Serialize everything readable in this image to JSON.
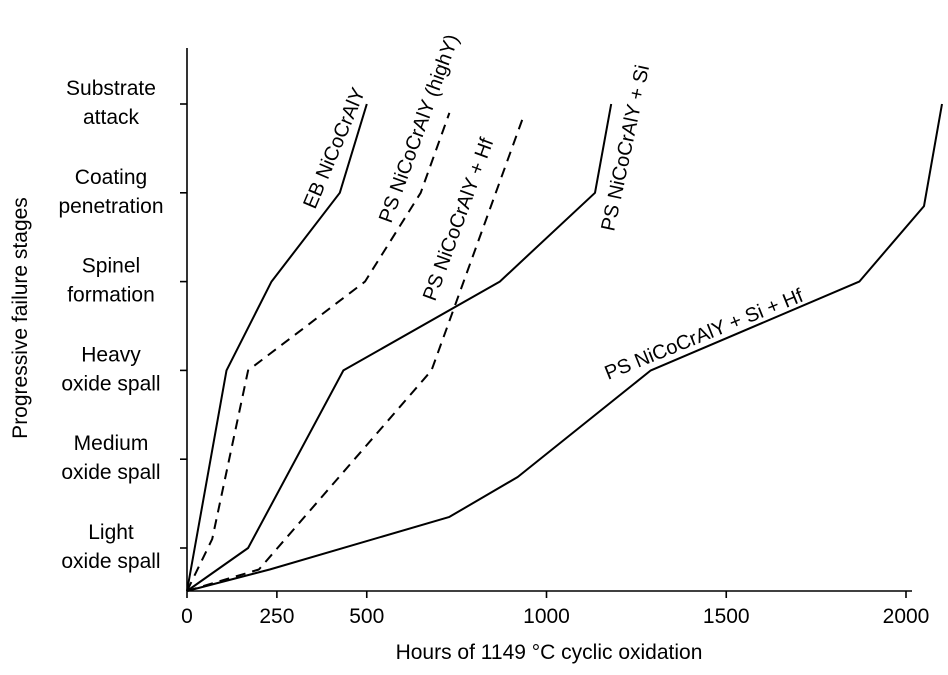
{
  "chart_data": {
    "type": "line",
    "xlabel": "Hours of 1149 °C cyclic oxidation",
    "ylabel": "Progressive failure stages",
    "xlim": [
      0,
      2100
    ],
    "x_ticks": [
      0,
      250,
      500,
      1000,
      1500,
      2000
    ],
    "y_categories": [
      {
        "line1": "Light",
        "line2": "oxide spall"
      },
      {
        "line1": "Medium",
        "line2": "oxide spall"
      },
      {
        "line1": "Heavy",
        "line2": "oxide spall"
      },
      {
        "line1": "Spinel",
        "line2": "formation"
      },
      {
        "line1": "Coating",
        "line2": "penetration"
      },
      {
        "line1": "Substrate",
        "line2": "attack"
      }
    ],
    "ylim": [
      0.5,
      6.5
    ],
    "grid": false,
    "series": [
      {
        "name": "EB NiCoCrAlY",
        "dash": "solid",
        "points": [
          [
            0,
            0
          ],
          [
            110,
            3
          ],
          [
            235,
            4
          ],
          [
            425,
            5
          ],
          [
            500,
            6
          ]
        ]
      },
      {
        "name": "PS NiCoCrAlY (highY)",
        "dash": "dashed",
        "points": [
          [
            0,
            0
          ],
          [
            70,
            1.1
          ],
          [
            170,
            3
          ],
          [
            495,
            4
          ],
          [
            650,
            5
          ],
          [
            730,
            5.9
          ]
        ]
      },
      {
        "name": "PS NiCoCrAlY + Hf",
        "dash": "dashed",
        "points": [
          [
            0,
            0
          ],
          [
            200,
            0.5
          ],
          [
            680,
            3
          ],
          [
            935,
            5.85
          ]
        ]
      },
      {
        "name": "PS NiCoCrAlY + Si",
        "dash": "solid",
        "points": [
          [
            0,
            0
          ],
          [
            170,
            1
          ],
          [
            435,
            3
          ],
          [
            870,
            4
          ],
          [
            1135,
            5
          ],
          [
            1180,
            6
          ]
        ]
      },
      {
        "name": "PS NiCoCrAlY + Si + Hf",
        "dash": "solid",
        "points": [
          [
            0,
            0
          ],
          [
            230,
            0.5
          ],
          [
            730,
            1.35
          ],
          [
            920,
            1.8
          ],
          [
            1290,
            3
          ],
          [
            1870,
            4
          ],
          [
            2050,
            4.85
          ],
          [
            2100,
            6
          ]
        ]
      }
    ]
  }
}
